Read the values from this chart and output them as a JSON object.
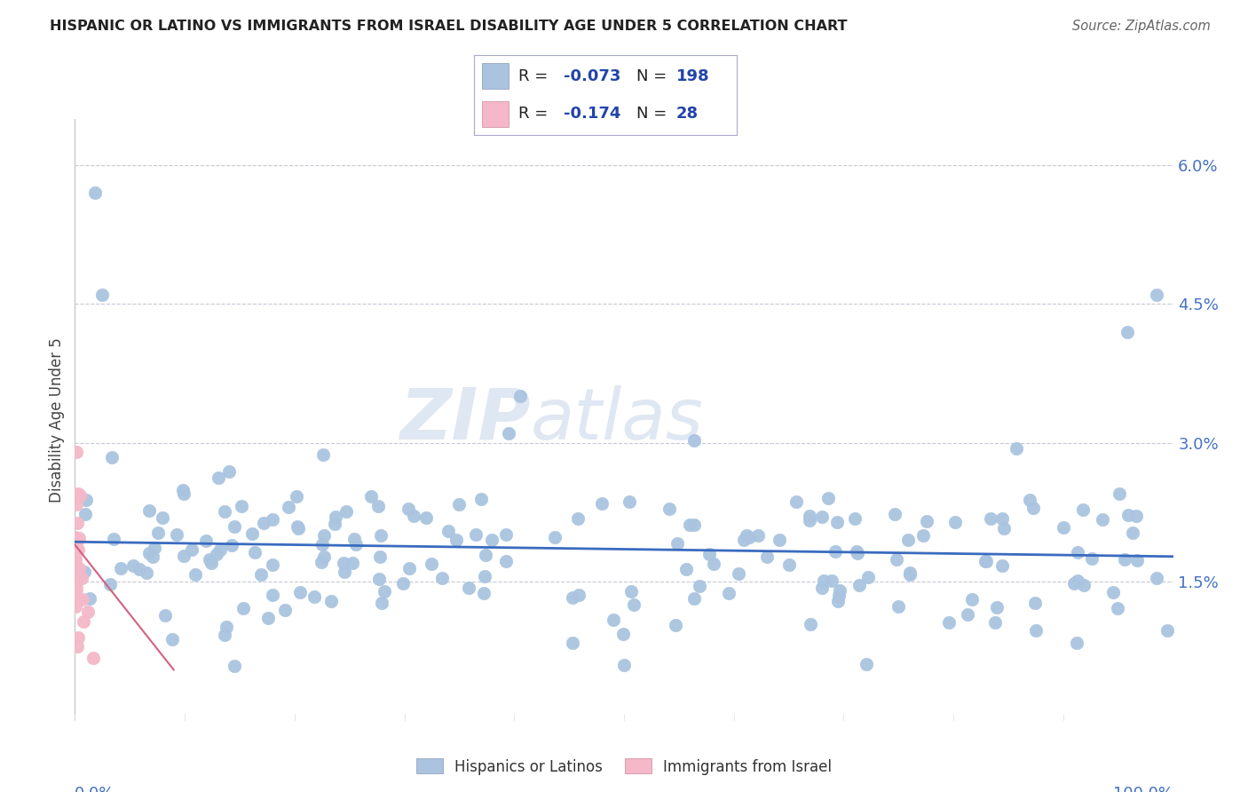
{
  "title": "HISPANIC OR LATINO VS IMMIGRANTS FROM ISRAEL DISABILITY AGE UNDER 5 CORRELATION CHART",
  "source": "Source: ZipAtlas.com",
  "ylabel": "Disability Age Under 5",
  "watermark_bold": "ZIP",
  "watermark_light": "atlas",
  "series1": {
    "name": "Hispanics or Latinos",
    "R": -0.073,
    "N": 198,
    "color": "#aac4e0",
    "line_color": "#3a6bbf"
  },
  "series2": {
    "name": "Immigrants from Israel",
    "R": -0.174,
    "N": 28,
    "color": "#f4b8c8",
    "line_color": "#d46080"
  },
  "background_color": "#ffffff",
  "grid_color": "#c8c8d8",
  "title_color": "#222222",
  "axis_label_color": "#4472c4",
  "legend_text_color_R": "#2244aa",
  "legend_text_color_N": "#2244aa",
  "yticks": [
    0.015,
    0.03,
    0.045,
    0.06
  ],
  "ytick_labels": [
    "1.5%",
    "3.0%",
    "4.5%",
    "6.0%"
  ],
  "ymin": 0.0,
  "ymax": 0.065,
  "xmin": 0.0,
  "xmax": 1.0
}
